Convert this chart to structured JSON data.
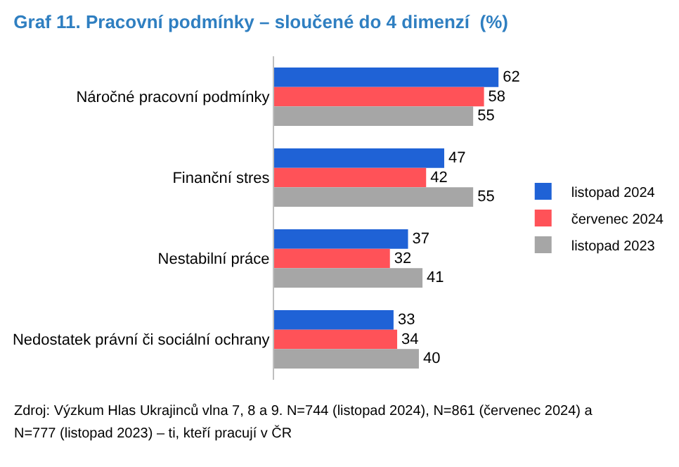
{
  "chart_data": {
    "type": "bar",
    "orientation": "horizontal",
    "title": "Graf 11. Pracovní podmínky – sloučené do 4 dimenzí  (%)",
    "categories": [
      "Náročné pracovní podmínky",
      "Finanční stres",
      "Nestabilní práce",
      "Nedostatek právní či sociální ochrany"
    ],
    "series": [
      {
        "name": "listopad 2024",
        "color": "#1f62d6",
        "values": [
          62,
          47,
          37,
          33
        ]
      },
      {
        "name": "červenec 2024",
        "color": "#ff5258",
        "values": [
          58,
          42,
          32,
          34
        ]
      },
      {
        "name": "listopad 2023",
        "color": "#a6a6a6",
        "values": [
          55,
          55,
          41,
          40
        ]
      }
    ],
    "data_labels": true,
    "legend": "right",
    "grid": false,
    "annotations": [
      "Zdroj: Výzkum Hlas Ukrajinců vlna 7, 8 a 9. N=744 (listopad 2024), N=861 (červenec 2024) a N=777 (listopad 2023) – ti, kteří pracují v ČR"
    ]
  }
}
